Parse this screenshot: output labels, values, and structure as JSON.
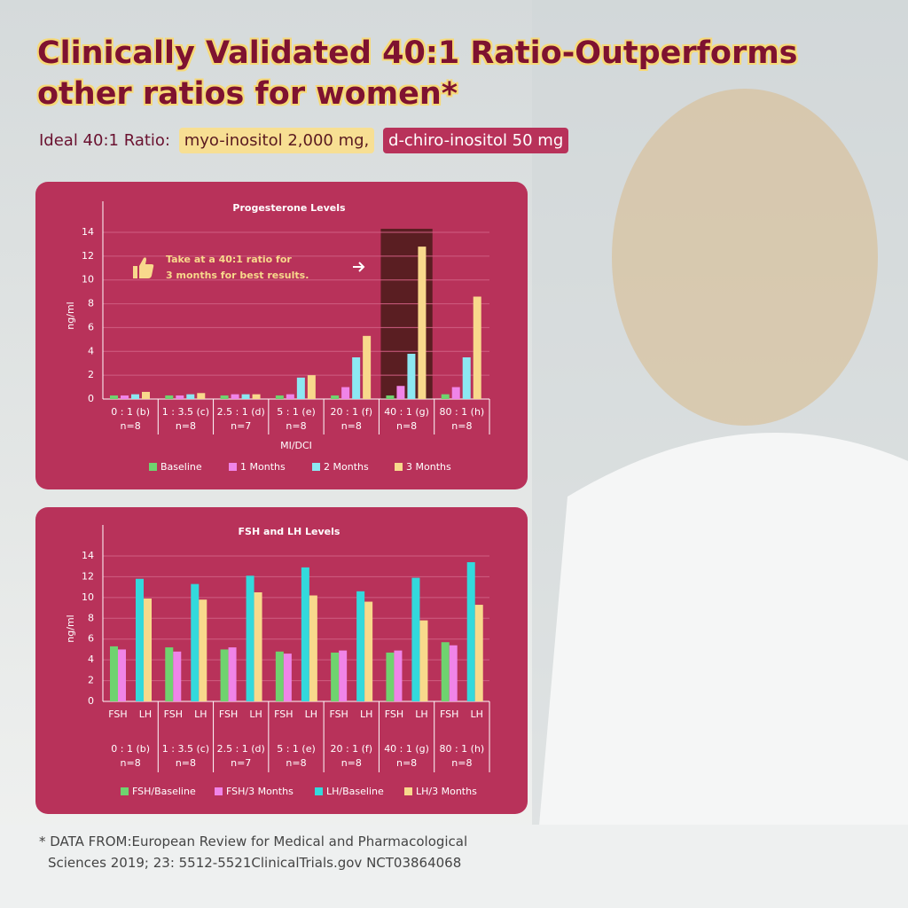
{
  "header": {
    "title_lines": [
      "Clinically Validated 40:1 Ratio-Outperforms",
      "other ratios for women*"
    ],
    "ratio_label": "Ideal 40:1 Ratio:",
    "myo": "myo-inositol 2,000 mg,",
    "dchiro": "d-chiro-inositol 50 mg"
  },
  "footnote_lines": [
    "* DATA FROM:European Review for Medical and Pharmacological",
    "Sciences 2019; 23: 5512-5521ClinicalTrials.gov NCT03864068"
  ],
  "chart_data": [
    {
      "type": "bar",
      "title": "Progesterone Levels",
      "x_label": "MI/DCI",
      "y_label": "ng/ml",
      "categories": [
        "0 : 1 (b)",
        "1 : 3.5 (c)",
        "2.5 : 1 (d)",
        "5 : 1 (e)",
        "20 : 1 (f)",
        "40 : 1 (g)",
        "80 : 1 (h)"
      ],
      "group_sizes": [
        "n=8",
        "n=8",
        "n=7",
        "n=8",
        "n=8",
        "n=8",
        "n=8"
      ],
      "highlight": "40 : 1 (g)",
      "annotation_lines": [
        "Take at a 40:1 ratio for",
        "3 months for best results."
      ],
      "series": [
        {
          "name": "Baseline",
          "color": "#6fd36f",
          "values": [
            0.3,
            0.3,
            0.3,
            0.3,
            0.3,
            0.3,
            0.4
          ]
        },
        {
          "name": "1 Months",
          "color": "#f084e8",
          "values": [
            0.3,
            0.3,
            0.4,
            0.4,
            1.0,
            1.1,
            1.0
          ]
        },
        {
          "name": "2 Months",
          "color": "#8ce8f2",
          "values": [
            0.4,
            0.4,
            0.4,
            1.8,
            3.5,
            3.8,
            3.5
          ]
        },
        {
          "name": "3 Months",
          "color": "#f8d98c",
          "values": [
            0.6,
            0.5,
            0.4,
            2.0,
            5.3,
            12.8,
            8.6
          ]
        }
      ],
      "ylim": [
        0,
        14
      ],
      "yticks": [
        0,
        2,
        4,
        6,
        8,
        10,
        12,
        14
      ],
      "grid": true,
      "legend": "bottom"
    },
    {
      "type": "bar",
      "title": "FSH and LH Levels",
      "y_label": "ng/ml",
      "categories": [
        "0 : 1 (b)",
        "1 : 3.5 (c)",
        "2.5 : 1 (d)",
        "5 : 1 (e)",
        "20 : 1 (f)",
        "40 : 1 (g)",
        "80 : 1 (h)"
      ],
      "group_sizes": [
        "n=8",
        "n=8",
        "n=7",
        "n=8",
        "n=8",
        "n=8",
        "n=8"
      ],
      "sub_labels": [
        "FSH",
        "LH"
      ],
      "series": [
        {
          "name": "FSH/Baseline",
          "color": "#6fd36f",
          "values": [
            5.3,
            5.2,
            5.0,
            4.8,
            4.7,
            4.7,
            5.7
          ]
        },
        {
          "name": "FSH/3 Months",
          "color": "#f084e8",
          "values": [
            5.0,
            4.8,
            5.2,
            4.6,
            4.9,
            4.9,
            5.4
          ]
        },
        {
          "name": "LH/Baseline",
          "color": "#33d9dc",
          "values": [
            11.8,
            11.3,
            12.1,
            12.9,
            10.6,
            11.9,
            13.4
          ]
        },
        {
          "name": "LH/3 Months",
          "color": "#f8d98c",
          "values": [
            9.9,
            9.8,
            10.5,
            10.2,
            9.6,
            7.8,
            9.3
          ]
        }
      ],
      "ylim": [
        0,
        14
      ],
      "yticks": [
        0,
        2,
        4,
        6,
        8,
        10,
        12,
        14
      ],
      "grid": true,
      "legend": "bottom"
    }
  ]
}
